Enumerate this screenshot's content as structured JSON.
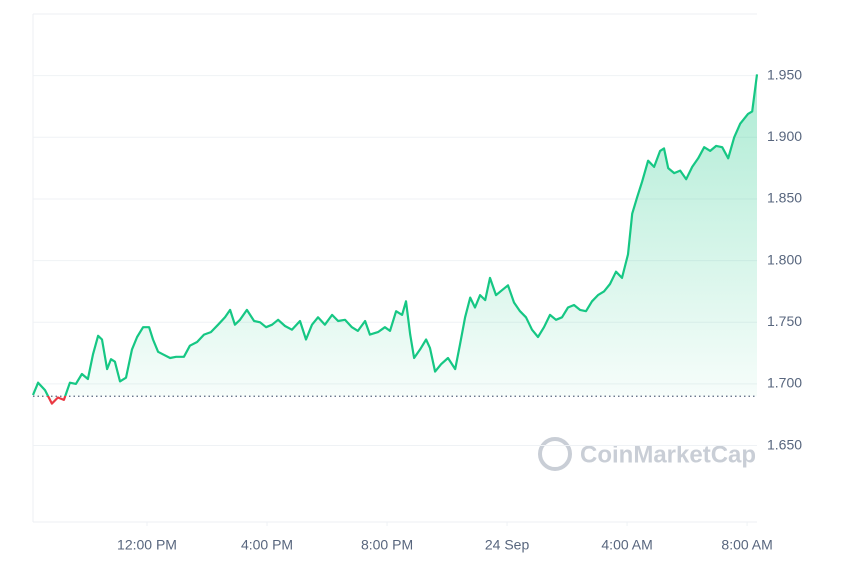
{
  "chart_data": {
    "type": "line",
    "watermark": "CoinMarketCap",
    "x": [
      0,
      0.17,
      0.4,
      0.63,
      0.83,
      1.03,
      1.23,
      1.43,
      1.63,
      1.83,
      2,
      2.17,
      2.3,
      2.47,
      2.6,
      2.73,
      2.9,
      3.1,
      3.3,
      3.47,
      3.67,
      3.87,
      4,
      4.17,
      4.33,
      4.57,
      4.77,
      5.03,
      5.23,
      5.47,
      5.7,
      5.93,
      6.17,
      6.4,
      6.57,
      6.73,
      6.9,
      7.13,
      7.37,
      7.57,
      7.77,
      7.97,
      8.17,
      8.4,
      8.63,
      8.9,
      9.1,
      9.3,
      9.5,
      9.73,
      9.97,
      10.17,
      10.4,
      10.63,
      10.83,
      11.07,
      11.23,
      11.5,
      11.73,
      11.9,
      12.1,
      12.3,
      12.43,
      12.57,
      12.7,
      12.9,
      13.1,
      13.23,
      13.4,
      13.6,
      13.83,
      14.07,
      14.23,
      14.4,
      14.57,
      14.73,
      14.9,
      15.07,
      15.23,
      15.43,
      15.63,
      15.83,
      16.03,
      16.23,
      16.43,
      16.63,
      16.83,
      17.03,
      17.23,
      17.43,
      17.63,
      17.83,
      18.03,
      18.23,
      18.43,
      18.63,
      18.83,
      19.03,
      19.23,
      19.43,
      19.63,
      19.83,
      19.97,
      20.13,
      20.3,
      20.5,
      20.7,
      20.9,
      21.03,
      21.17,
      21.37,
      21.57,
      21.77,
      21.97,
      22.17,
      22.37,
      22.57,
      22.77,
      22.97,
      23.17,
      23.37,
      23.57,
      23.7,
      23.83,
      23.97,
      24.13
    ],
    "series": [
      {
        "color": "#16c784",
        "below_color": "#ea3943",
        "values": [
          1.691,
          1.701,
          1.695,
          1.684,
          1.689,
          1.687,
          1.701,
          1.7,
          1.708,
          1.704,
          1.724,
          1.739,
          1.736,
          1.712,
          1.72,
          1.718,
          1.702,
          1.705,
          1.728,
          1.738,
          1.746,
          1.746,
          1.736,
          1.726,
          1.724,
          1.721,
          1.722,
          1.722,
          1.731,
          1.734,
          1.74,
          1.742,
          1.748,
          1.754,
          1.76,
          1.748,
          1.752,
          1.76,
          1.751,
          1.75,
          1.746,
          1.748,
          1.752,
          1.747,
          1.744,
          1.751,
          1.736,
          1.748,
          1.754,
          1.748,
          1.756,
          1.751,
          1.752,
          1.746,
          1.743,
          1.751,
          1.74,
          1.742,
          1.746,
          1.743,
          1.759,
          1.756,
          1.767,
          1.74,
          1.721,
          1.728,
          1.736,
          1.729,
          1.71,
          1.716,
          1.721,
          1.712,
          1.732,
          1.754,
          1.77,
          1.762,
          1.772,
          1.768,
          1.786,
          1.772,
          1.776,
          1.78,
          1.766,
          1.759,
          1.754,
          1.744,
          1.738,
          1.746,
          1.756,
          1.752,
          1.754,
          1.762,
          1.764,
          1.76,
          1.759,
          1.767,
          1.772,
          1.775,
          1.781,
          1.791,
          1.786,
          1.805,
          1.838,
          1.851,
          1.864,
          1.881,
          1.876,
          1.889,
          1.891,
          1.875,
          1.871,
          1.873,
          1.866,
          1.876,
          1.883,
          1.892,
          1.889,
          1.893,
          1.892,
          1.883,
          1.9,
          1.911,
          1.915,
          1.919,
          1.921,
          1.951
        ]
      }
    ],
    "reference": 1.69,
    "xlim": [
      0,
      24.13
    ],
    "xticks": [
      {
        "value": 3.8,
        "label": "12:00 PM"
      },
      {
        "value": 7.8,
        "label": "4:00 PM"
      },
      {
        "value": 11.8,
        "label": "8:00 PM"
      },
      {
        "value": 15.8,
        "label": "24 Sep"
      },
      {
        "value": 19.8,
        "label": "4:00 AM"
      },
      {
        "value": 23.8,
        "label": "8:00 AM"
      }
    ],
    "ylim": [
      1.588,
      2.0
    ],
    "yticks": [
      {
        "value": 1.65,
        "label": "1.650"
      },
      {
        "value": 1.7,
        "label": "1.700"
      },
      {
        "value": 1.75,
        "label": "1.750"
      },
      {
        "value": 1.8,
        "label": "1.800"
      },
      {
        "value": 1.85,
        "label": "1.850"
      },
      {
        "value": 1.9,
        "label": "1.900"
      },
      {
        "value": 1.95,
        "label": "1.950"
      }
    ],
    "grid": true
  }
}
